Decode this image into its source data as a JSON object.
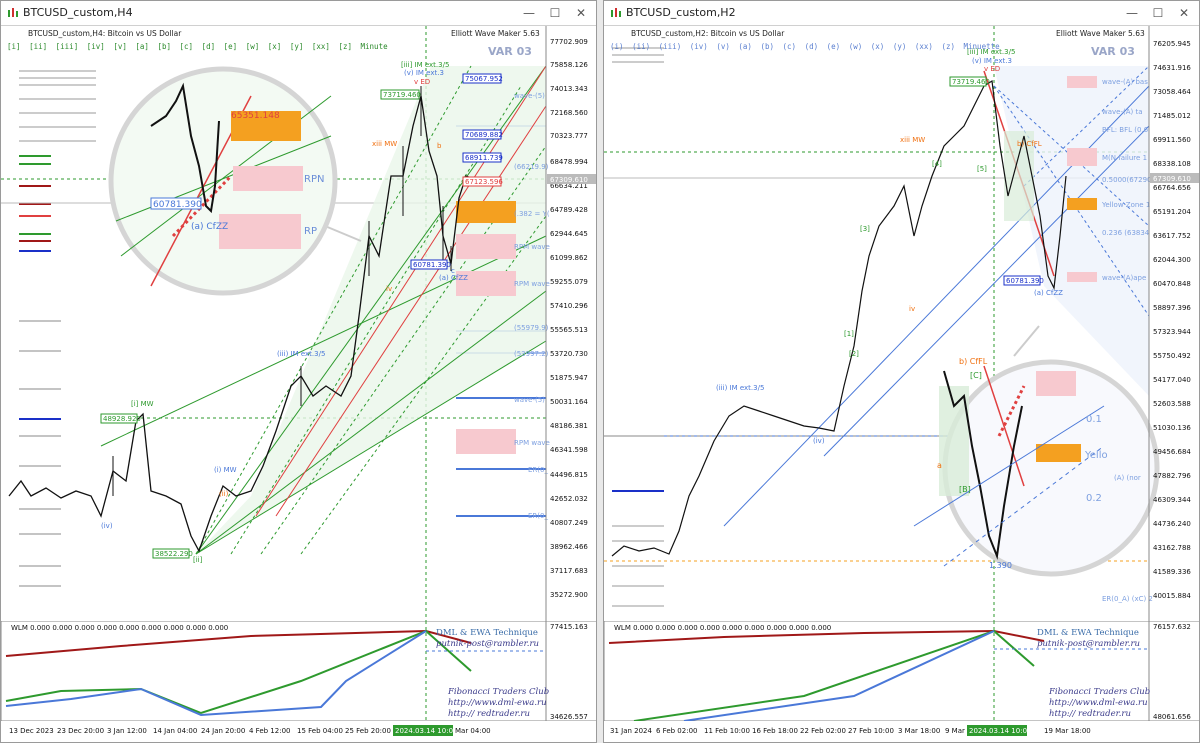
{
  "left": {
    "title": "BTCUSD_custom,H4",
    "symbol_line": "BTCUSD_custom,H4:  Bitcoin vs US Dollar",
    "tf_buttons": [
      "[i]",
      "[ii]",
      "[iii]",
      "[iv]",
      "[v]",
      "[a]",
      "[b]",
      "[c]",
      "[d]",
      "[e]",
      "[w]",
      "[x]",
      "[y]",
      "[xx]",
      "[z]",
      "Minute"
    ],
    "tool_label": "Elliott Wave Maker 5.63",
    "var_label": "VAR 03",
    "price_ticks": [
      "77702.909",
      "75858.126",
      "74013.343",
      "72168.560",
      "70323.777",
      "68478.994",
      "66634.211",
      "64789.428",
      "62944.645",
      "61099.862",
      "59255.079",
      "57410.296",
      "55565.513",
      "53720.730",
      "51875.947",
      "50031.164",
      "48186.381",
      "46341.598",
      "44496.815",
      "42652.032",
      "40807.249",
      "38962.466",
      "37117.683",
      "35272.900"
    ],
    "current_price": "67309.610",
    "date_ticks": [
      "13 Dec 2023",
      "23 Dec 20:00",
      "3 Jan 12:00",
      "14 Jan 04:00",
      "24 Jan 20:00",
      "4 Feb 12:00",
      "15 Feb 04:00",
      "25 Feb 20:00",
      "2024.03.14 10:05",
      "Mar 04:00"
    ],
    "boxes": [
      "73719.460",
      "75067.952",
      "70689.882",
      "68911.739",
      "67123.596",
      "60781.390",
      "48928.920",
      "38522.290"
    ],
    "wave_labels": [
      "[iii] IM ext.3/5",
      "(v) IM ext.3",
      "v ED",
      "xiii MW",
      "(iii) IM ext.3/5",
      "[i] MW",
      "(i) MW",
      "(a) CfZZ",
      "b",
      "c",
      "iv",
      "(iv)",
      "(ii)",
      "[ii]"
    ],
    "zoom": {
      "price_box": "65351.148",
      "low_box": "60781.390",
      "label": "(a) CfZZ",
      "rp1": "RPN",
      "rp2": "RP"
    },
    "right_labels": [
      "wave-(5)",
      "(66219.9)",
      "(.382 = Y(",
      "RPM wave",
      "RPM wave",
      "(55979.9)",
      "(53997.2)",
      "wave-(5)",
      "RPM wave",
      "ER(0_",
      "ER(0_"
    ],
    "indicator": {
      "label": "WLM 0.000 0.000 0.000 0.000 0.000 0.000 0.000 0.000 0.000",
      "top": "77415.163",
      "bottom": "34626.557"
    },
    "credits": {
      "title": "DML & EWA Technique",
      "email": "putnik-post@rambler.ru",
      "club": "Fibonacci   Traders   Club",
      "url1": "http://www.dml-ewa.ru",
      "url2": "http:// redtrader.ru"
    }
  },
  "right": {
    "title": "BTCUSD_custom,H2",
    "symbol_line": "BTCUSD_custom,H2:  Bitcoin vs US Dollar",
    "tf_buttons": [
      "(i)",
      "(ii)",
      "(iii)",
      "(iv)",
      "(v)",
      "(a)",
      "(b)",
      "(c)",
      "(d)",
      "(e)",
      "(w)",
      "(x)",
      "(y)",
      "(xx)",
      "(z)",
      "Minuette"
    ],
    "tool_label": "Elliott Wave Maker 5.63",
    "var_label": "VAR 03",
    "price_ticks": [
      "76205.945",
      "74631.916",
      "73058.464",
      "71485.012",
      "69911.560",
      "68338.108",
      "66764.656",
      "65191.204",
      "63617.752",
      "62044.300",
      "60470.848",
      "58897.396",
      "57323.944",
      "55750.492",
      "54177.040",
      "52603.588",
      "51030.136",
      "49456.684",
      "47882.796",
      "46309.344",
      "44736.240",
      "43162.788",
      "41589.336",
      "40015.884"
    ],
    "current_price": "67309.610",
    "date_ticks": [
      "31 Jan 2024",
      "6 Feb 02:00",
      "11 Feb 10:00",
      "16 Feb 18:00",
      "22 Feb 02:00",
      "27 Feb 10:00",
      "3 Mar 18:00",
      "9 Mar",
      "2024.03.14 10:05",
      "19 Mar 18:00"
    ],
    "boxes": [
      "73719.460",
      "60781.390"
    ],
    "wave_labels": [
      "[iii] IM ext.3/5",
      "(v) IM ext.3",
      "v ED",
      "xiii MW",
      "(iii) IM ext.3/5",
      "(a) CfZZ",
      "b) CfFL",
      "iv",
      "(iv)",
      "[5]",
      "[3]",
      "[1]",
      "[2]",
      "[4]"
    ],
    "zoom": {
      "label": "b) CfFL",
      "low_box": "1.390",
      "yellow": "Yello",
      "fib1": "0.1",
      "fib2": "0.2",
      "wave_b": "[B]",
      "wave_a": "a",
      "wave_c": "[C]"
    },
    "right_labels": [
      "wave-(A) bas",
      "wave-(A) ta",
      "BFL: BFL (0.6",
      "M(N failure 1",
      "0.5000(67290",
      "Yellow Zone 1",
      "0.236 (63834",
      "wave-(A)ape",
      "(A) (nor",
      "ER(0_A) (xC) 2"
    ],
    "indicator": {
      "label": "WLM 0.000 0.000 0.000 0.000 0.000 0.000 0.000 0.000 0.000",
      "top": "76157.632",
      "bottom": "48061.656"
    },
    "credits": {
      "title": "DML & EWA Technique",
      "email": "putnik-post@rambler.ru",
      "club": "Fibonacci   Traders   Club",
      "url1": "http://www.dml-ewa.ru",
      "url2": "http:// redtrader.ru"
    }
  },
  "colors": {
    "grid_green": "#2e9a2e",
    "wave_blue": "#4a78d8",
    "red": "#e04040",
    "orange": "#f4a020",
    "pink": "#f7c9cf",
    "dark_red": "#a01818"
  }
}
